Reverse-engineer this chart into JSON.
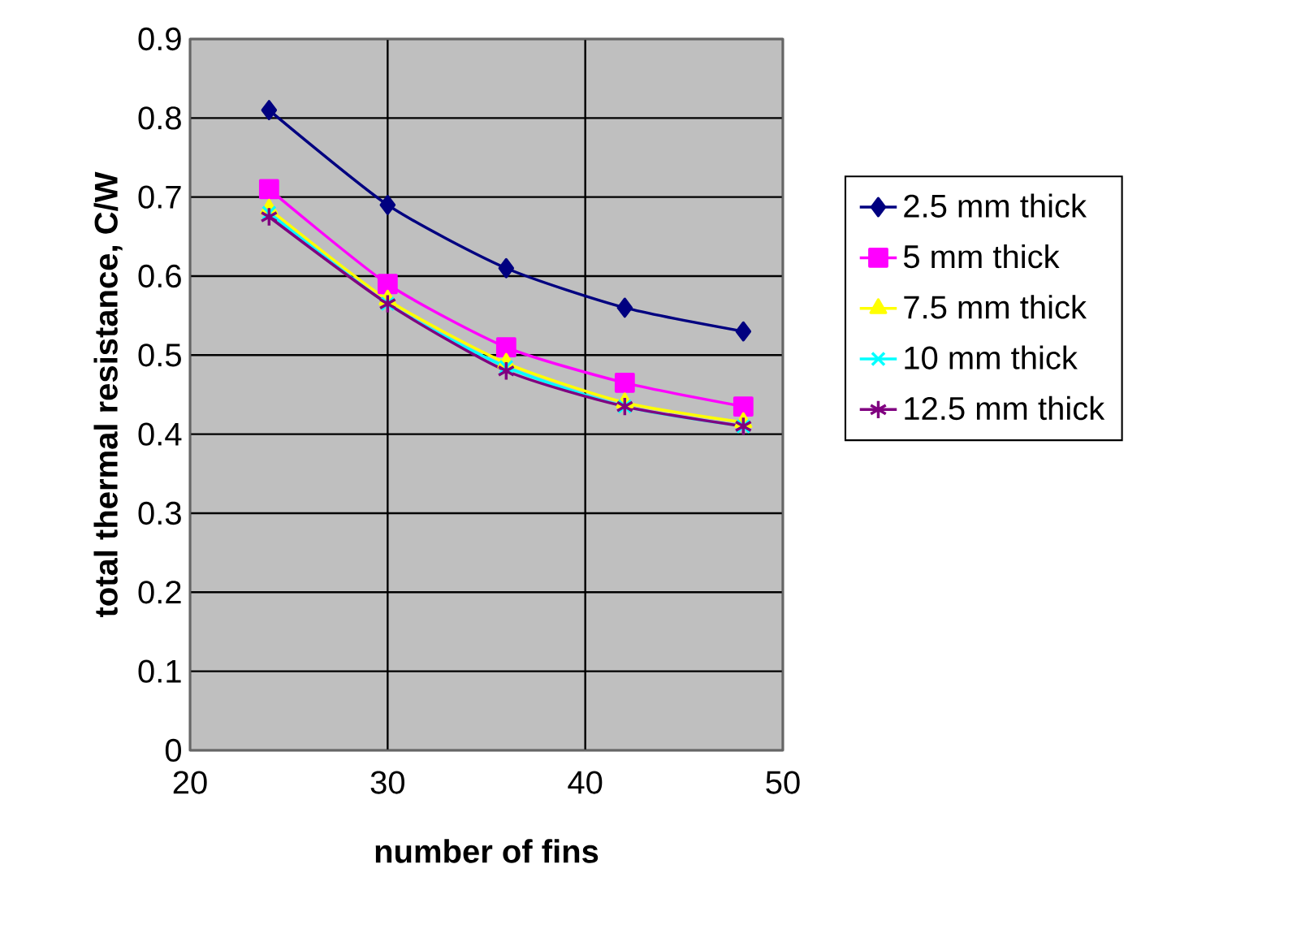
{
  "chart_data": {
    "type": "line",
    "xlabel": "number of fins",
    "ylabel": "total thermal resistance, C/W",
    "x": [
      24,
      30,
      36,
      42,
      48
    ],
    "series": [
      {
        "name": "2.5 mm thick",
        "color": "#000080",
        "marker": "diamond",
        "values": [
          0.81,
          0.69,
          0.61,
          0.56,
          0.53
        ]
      },
      {
        "name": "5 mm thick",
        "color": "#ff00ff",
        "marker": "square",
        "values": [
          0.71,
          0.59,
          0.51,
          0.465,
          0.435
        ]
      },
      {
        "name": "7.5 mm thick",
        "color": "#ffff00",
        "marker": "triangle",
        "values": [
          0.685,
          0.57,
          0.49,
          0.44,
          0.415
        ]
      },
      {
        "name": "10 mm thick",
        "color": "#00ffff",
        "marker": "cross",
        "values": [
          0.68,
          0.565,
          0.485,
          0.435,
          0.41
        ]
      },
      {
        "name": "12.5 mm thick",
        "color": "#800080",
        "marker": "cross",
        "values": [
          0.675,
          0.565,
          0.48,
          0.435,
          0.41
        ]
      }
    ],
    "xlim": [
      20,
      50
    ],
    "xticks": [
      20,
      30,
      40,
      50
    ],
    "ylim": [
      0,
      0.9
    ],
    "yticks": [
      0,
      0.1,
      0.2,
      0.3,
      0.4,
      0.5,
      0.6,
      0.7,
      0.8,
      0.9
    ],
    "grid": true,
    "legend": "right"
  }
}
